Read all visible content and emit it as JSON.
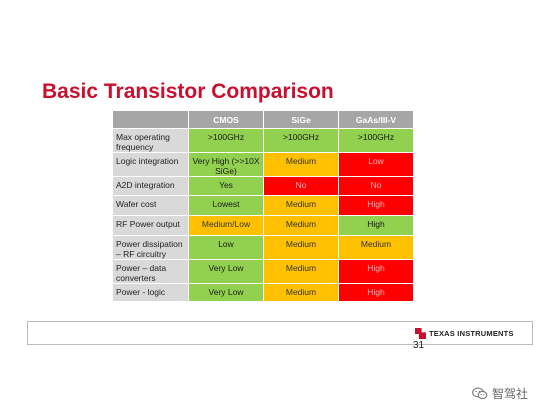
{
  "slide": {
    "title": "Basic Transistor Comparison",
    "page_number": "31"
  },
  "table": {
    "columns": [
      "CMOS",
      "SiGe",
      "GaAs/III-V"
    ],
    "rows": [
      {
        "label": "Max operating frequency",
        "cells": [
          {
            "text": ">100GHz",
            "status": "green"
          },
          {
            "text": ">100GHz",
            "status": "green"
          },
          {
            "text": ">100GHz",
            "status": "green"
          }
        ]
      },
      {
        "label": "Logic integration",
        "cells": [
          {
            "text": "Very High (>>10X SiGe)",
            "status": "green"
          },
          {
            "text": "Medium",
            "status": "orange"
          },
          {
            "text": "Low",
            "status": "red"
          }
        ]
      },
      {
        "label": "A2D integration",
        "cells": [
          {
            "text": "Yes",
            "status": "green"
          },
          {
            "text": "No",
            "status": "red"
          },
          {
            "text": "No",
            "status": "red"
          }
        ]
      },
      {
        "label": "Wafer cost",
        "cells": [
          {
            "text": "Lowest",
            "status": "green"
          },
          {
            "text": "Medium",
            "status": "orange"
          },
          {
            "text": "High",
            "status": "red"
          }
        ]
      },
      {
        "label": "RF Power output",
        "cells": [
          {
            "text": "Medium/Low",
            "status": "orange"
          },
          {
            "text": "Medium",
            "status": "orange"
          },
          {
            "text": "High",
            "status": "green"
          }
        ]
      },
      {
        "label": "Power dissipation – RF circuitry",
        "cells": [
          {
            "text": "Low",
            "status": "green"
          },
          {
            "text": "Medium",
            "status": "orange"
          },
          {
            "text": "Medium",
            "status": "orange"
          }
        ]
      },
      {
        "label": "Power – data converters",
        "cells": [
          {
            "text": "Very Low",
            "status": "green"
          },
          {
            "text": "Medium",
            "status": "orange"
          },
          {
            "text": "High",
            "status": "red"
          }
        ]
      },
      {
        "label": "Power - logic",
        "cells": [
          {
            "text": "Very Low",
            "status": "green"
          },
          {
            "text": "Medium",
            "status": "orange"
          },
          {
            "text": "High",
            "status": "red"
          }
        ]
      }
    ]
  },
  "footer": {
    "logo_text": "Texas Instruments",
    "logo_icon": "ti-logo-icon"
  },
  "watermark": {
    "text": "智驾社",
    "icon": "wechat-icon"
  },
  "colors": {
    "title": "#c8102e",
    "green": "#92d050",
    "orange": "#ffc000",
    "red": "#ff0000",
    "header": "#a6a6a6",
    "label_bg": "#d9d9d9"
  }
}
